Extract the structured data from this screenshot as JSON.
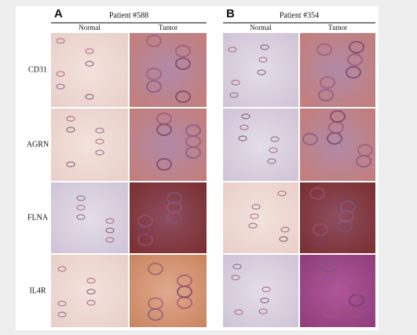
{
  "panels": [
    {
      "letter": "A",
      "title": "Patient #588",
      "columns": [
        "Normal",
        "Tumor"
      ]
    },
    {
      "letter": "B",
      "title": "Patient #354",
      "columns": [
        "Normal",
        "Tumor"
      ]
    }
  ],
  "rows": [
    "CD31",
    "AGRN",
    "FLNA",
    "IL4R"
  ]
}
